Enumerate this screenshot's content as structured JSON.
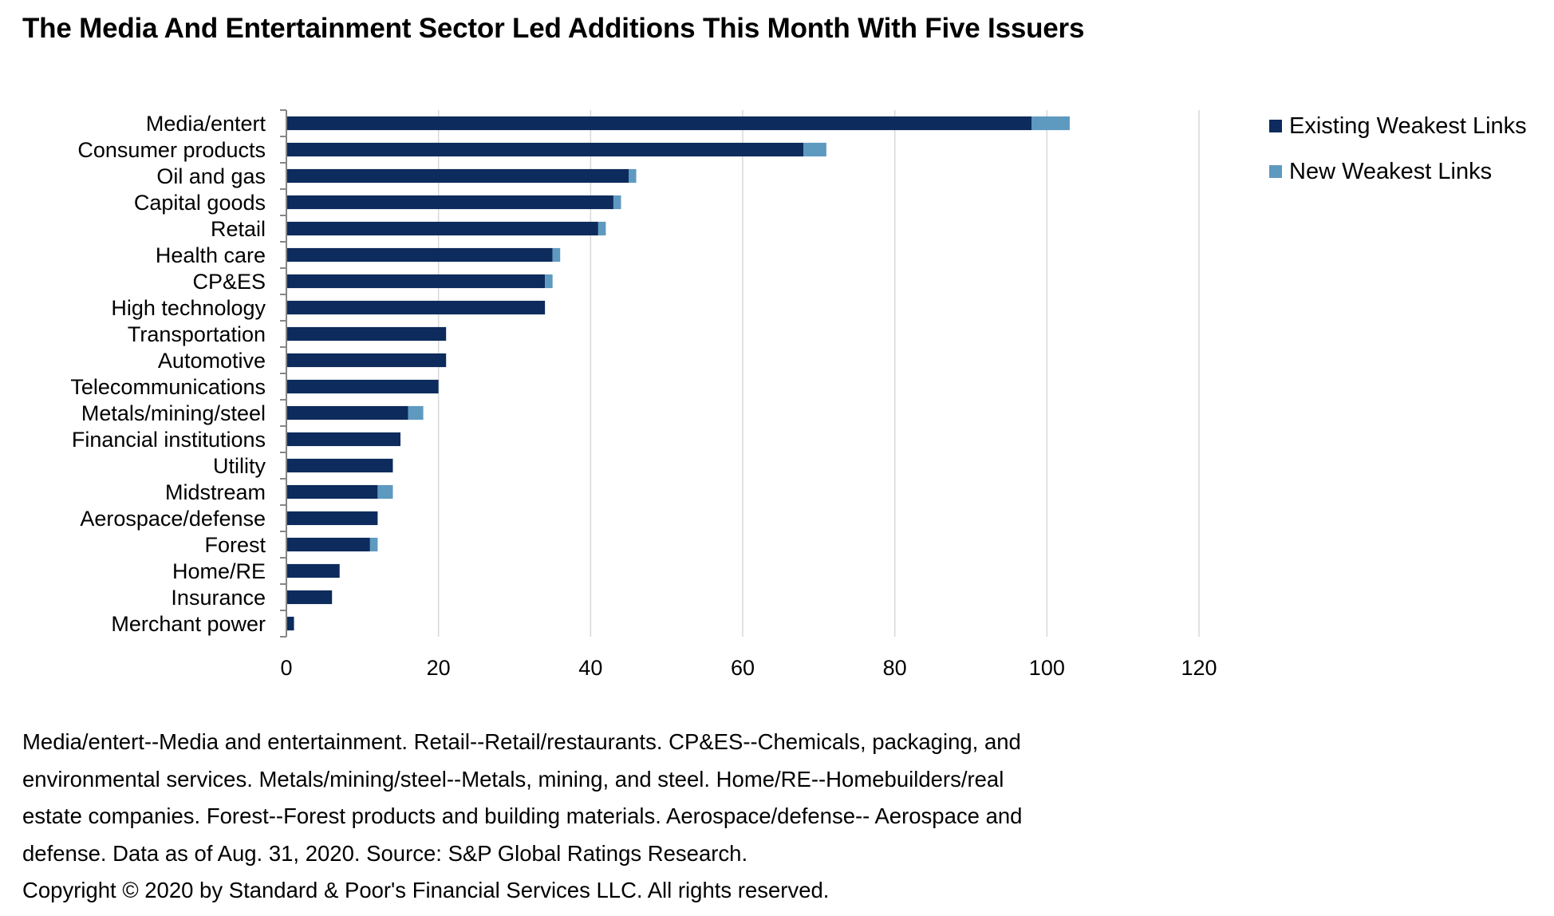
{
  "title": "The Media And Entertainment Sector Led Additions This Month With Five Issuers",
  "colors": {
    "existing": "#0D2B5C",
    "new": "#5E99C0",
    "gridline": "#D9D9D9",
    "axis": "#868686"
  },
  "legend": [
    {
      "label": "Existing Weakest Links",
      "color": "#0D2B5C"
    },
    {
      "label": "New Weakest Links",
      "color": "#5E99C0"
    }
  ],
  "footnote": {
    "lines": [
      "Media/entert--Media and entertainment. Retail--Retail/restaurants. CP&ES--Chemicals, packaging, and",
      "environmental services.  Metals/mining/steel--Metals, mining, and steel. Home/RE--Homebuilders/real",
      "estate companies. Forest--Forest products and building materials. Aerospace/defense-- Aerospace and",
      "defense. Data as of Aug. 31, 2020.  Source:  S&P Global Ratings Research.",
      "Copyright © 2020 by Standard & Poor's Financial Services LLC. All rights reserved."
    ]
  },
  "chart_data": {
    "type": "bar",
    "orientation": "horizontal",
    "stacked": true,
    "title": "The Media And Entertainment Sector Led Additions This Month With Five Issuers",
    "xlabel": "",
    "ylabel": "",
    "xlim": [
      0,
      120
    ],
    "xticks": [
      0,
      20,
      40,
      60,
      80,
      100,
      120
    ],
    "grid": "vertical",
    "legend_position": "right",
    "categories": [
      "Media/entert",
      "Consumer products",
      "Oil and gas",
      "Capital goods",
      "Retail",
      "Health care",
      "CP&ES",
      "High technology",
      "Transportation",
      "Automotive",
      "Telecommunications",
      "Metals/mining/steel",
      "Financial institutions",
      "Utility",
      "Midstream",
      "Aerospace/defense",
      "Forest",
      "Home/RE",
      "Insurance",
      "Merchant power"
    ],
    "series": [
      {
        "name": "Existing Weakest Links",
        "color": "#0D2B5C",
        "values": [
          98,
          68,
          45,
          43,
          41,
          35,
          34,
          34,
          21,
          21,
          20,
          16,
          15,
          14,
          12,
          12,
          11,
          7,
          6,
          1
        ]
      },
      {
        "name": "New Weakest Links",
        "color": "#5E99C0",
        "values": [
          5,
          3,
          1,
          1,
          1,
          1,
          1,
          0,
          0,
          0,
          0,
          2,
          0,
          0,
          2,
          0,
          1,
          0,
          0,
          0
        ]
      }
    ]
  }
}
